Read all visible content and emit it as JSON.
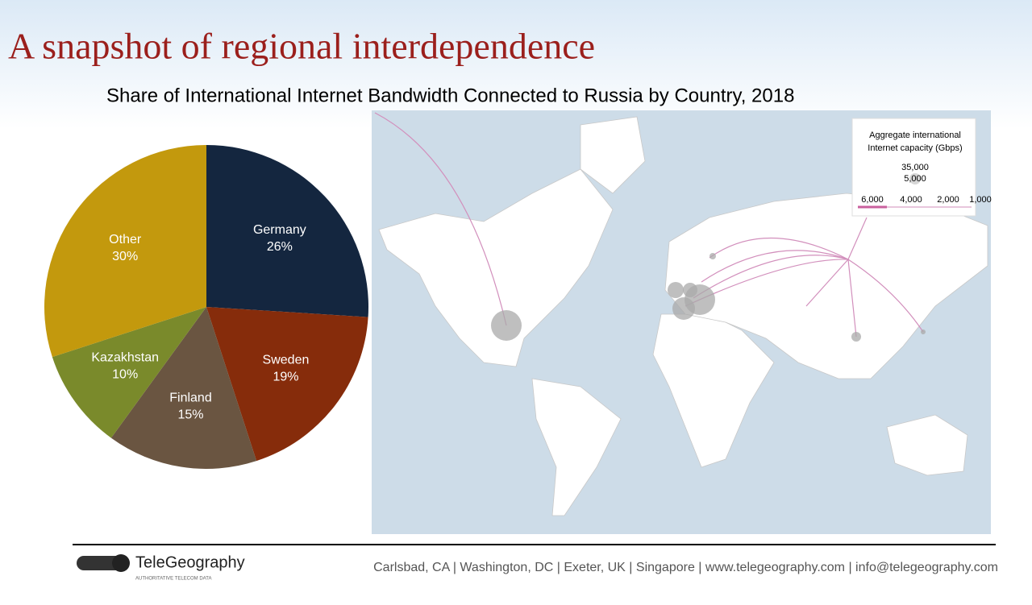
{
  "slide_title": "A snapshot of regional interdependence",
  "chart_data": {
    "type": "pie",
    "title": "Share of International Internet Bandwidth Connected to Russia by Country, 2018",
    "categories": [
      "Germany",
      "Sweden",
      "Finland",
      "Kazakhstan",
      "Other"
    ],
    "values": [
      26,
      19,
      15,
      10,
      30
    ],
    "value_labels": [
      "26%",
      "19%",
      "15%",
      "10%",
      "30%"
    ],
    "colors": [
      "#14263f",
      "#862c0b",
      "#6a5541",
      "#7a8a2b",
      "#c3990d"
    ]
  },
  "map_legend": {
    "title_lines": [
      "Aggregate international",
      "Internet capacity (Gbps)"
    ],
    "bubble_labels": [
      "35,000",
      "5,000"
    ],
    "line_labels": [
      "6,000",
      "4,000",
      "2,000",
      "1,000"
    ]
  },
  "footer": {
    "brand": "TeleGeography",
    "tagline": "AUTHORITATIVE TELECOM DATA",
    "contact": "Carlsbad, CA | Washington, DC | Exeter, UK | Singapore | www.telegeography.com | info@telegeography.com"
  }
}
